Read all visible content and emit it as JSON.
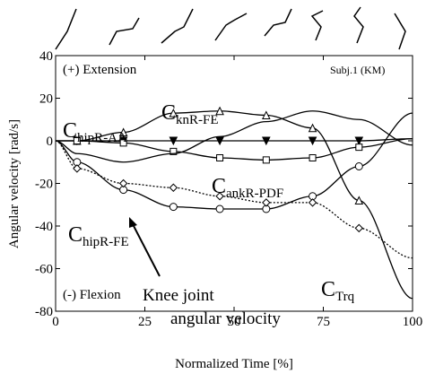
{
  "chart_data": {
    "type": "line",
    "xlabel": "Normalized Time [%]",
    "ylabel": "Angular velocity [rad/s]",
    "xlim": [
      0,
      100
    ],
    "ylim": [
      -80,
      40
    ],
    "xticks": [
      0,
      25,
      50,
      75,
      100
    ],
    "yticks": [
      40,
      20,
      0,
      -20,
      -40,
      -60,
      -80
    ],
    "x": [
      0,
      6,
      19,
      33,
      46,
      59,
      72,
      85,
      100
    ],
    "series": [
      {
        "name": "C knR-FE",
        "color": "#000",
        "marker": "triangle",
        "dash": "solid",
        "values": [
          0,
          0,
          4,
          13,
          14,
          12,
          6,
          -28,
          -74
        ]
      },
      {
        "name": "C hipR-AA",
        "color": "#000",
        "marker": "triangle-down",
        "dash": "solid",
        "values": [
          0,
          0,
          0,
          0,
          0,
          0,
          0,
          0,
          1
        ]
      },
      {
        "name": "C ankR-PDF",
        "color": "#000",
        "marker": "square",
        "dash": "solid",
        "values": [
          0,
          0,
          -1,
          -5,
          -8,
          -9,
          -8,
          -3,
          1
        ]
      },
      {
        "name": "C hipR-FE",
        "color": "#000",
        "marker": "circle",
        "dash": "solid",
        "values": [
          0,
          -10,
          -23,
          -31,
          -32,
          -32,
          -26,
          -12,
          13
        ]
      },
      {
        "name": "C Trq",
        "color": "#000",
        "marker": "diamond",
        "dash": "dotted",
        "values": [
          0,
          -13,
          -20,
          -22,
          -26,
          -29,
          -29,
          -41,
          -55
        ]
      },
      {
        "name": "Knee joint angular velocity",
        "color": "#000",
        "marker": "none",
        "dash": "solid",
        "values": [
          0,
          -6,
          -10,
          -6,
          2,
          9,
          14,
          10,
          -2
        ]
      }
    ],
    "annotations": [
      {
        "text": "(+) Extension"
      },
      {
        "text": "(-) Flexion"
      },
      {
        "text": "Subj.1 (KM)"
      },
      {
        "text": "C",
        "sub": "hipR-AA"
      },
      {
        "text": "C",
        "sub": "knR-FE"
      },
      {
        "text": "C",
        "sub": "ankR-PDF"
      },
      {
        "text": "C",
        "sub": "hipR-FE"
      },
      {
        "text": "C",
        "sub": "Trq"
      },
      {
        "text": "Knee joint"
      },
      {
        "text": "angular velocity"
      }
    ]
  }
}
